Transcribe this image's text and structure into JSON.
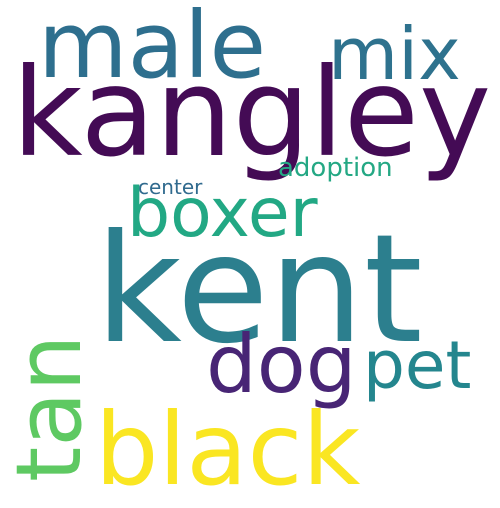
{
  "wordcloud": {
    "background": "#ffffff",
    "words": {
      "kent": {
        "text": "kent",
        "color": "#2c7f8e"
      },
      "kangley": {
        "text": "kangley",
        "color": "#440b55"
      },
      "black": {
        "text": "black",
        "color": "#fae622"
      },
      "male": {
        "text": "male",
        "color": "#2e6f8e"
      },
      "tan": {
        "text": "tan",
        "color": "#5ec962"
      },
      "boxer": {
        "text": "boxer",
        "color": "#22a884"
      },
      "dog": {
        "text": "dog",
        "color": "#482575"
      },
      "mix": {
        "text": "mix",
        "color": "#2e728e"
      },
      "pet": {
        "text": "pet",
        "color": "#24868e"
      },
      "adoption": {
        "text": "adoption",
        "color": "#24a884"
      },
      "center": {
        "text": "center",
        "color": "#306a8e"
      }
    }
  }
}
